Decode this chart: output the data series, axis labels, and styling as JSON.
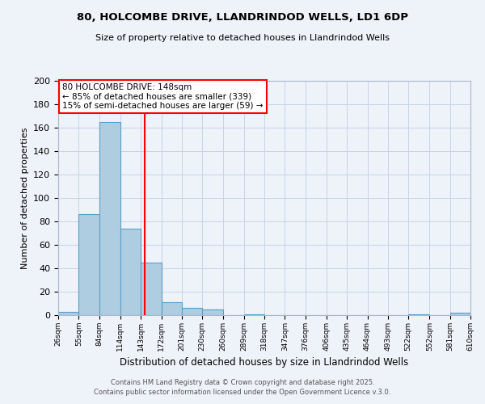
{
  "title": "80, HOLCOMBE DRIVE, LLANDRINDOD WELLS, LD1 6DP",
  "subtitle": "Size of property relative to detached houses in Llandrindod Wells",
  "xlabel": "Distribution of detached houses by size in Llandrindod Wells",
  "ylabel": "Number of detached properties",
  "bar_edges": [
    26,
    55,
    84,
    114,
    143,
    172,
    201,
    230,
    260,
    289,
    318,
    347,
    376,
    406,
    435,
    464,
    493,
    522,
    552,
    581,
    610
  ],
  "bar_heights": [
    3,
    86,
    165,
    74,
    45,
    11,
    6,
    5,
    0,
    1,
    0,
    0,
    0,
    0,
    0,
    0,
    0,
    1,
    0,
    2
  ],
  "bar_color": "#aecde1",
  "bar_edge_color": "#5b9ec9",
  "red_line_x": 148,
  "annotation_line1": "80 HOLCOMBE DRIVE: 148sqm",
  "annotation_line2": "← 85% of detached houses are smaller (339)",
  "annotation_line3": "15% of semi-detached houses are larger (59) →",
  "annotation_box_color": "white",
  "annotation_box_edgecolor": "red",
  "ylim": [
    0,
    200
  ],
  "yticks": [
    0,
    20,
    40,
    60,
    80,
    100,
    120,
    140,
    160,
    180,
    200
  ],
  "background_color": "#eef2f9",
  "grid_color": "#c8d4e8",
  "footer_line1": "Contains HM Land Registry data © Crown copyright and database right 2025.",
  "footer_line2": "Contains public sector information licensed under the Open Government Licence v.3.0."
}
